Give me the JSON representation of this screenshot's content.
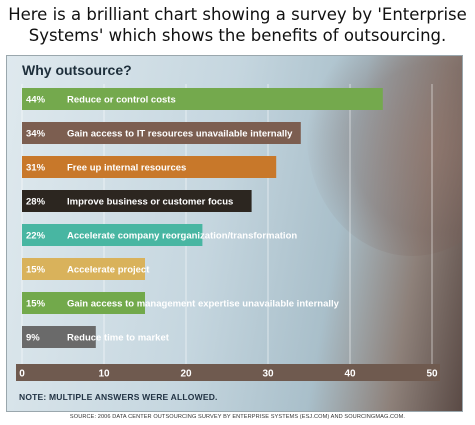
{
  "caption": "Here is a brilliant chart showing a survey by 'Enterprise Systems' which shows the benefits of outsourcing.",
  "note": "NOTE: MULTIPLE ANSWERS WERE ALLOWED.",
  "source": "SOURCE: 2006 DATA CENTER OUTSOURCING SURVEY BY ENTERPRISE SYSTEMS (ESJ.COM) AND SOURCINGMAG.COM.",
  "colors": {
    "axis_bar": "#6f5a4f",
    "bar_colors": [
      "#74a94d",
      "#7c5e50",
      "#c8782a",
      "#2c2620",
      "#48b6a2",
      "#d9b25b",
      "#72a94b",
      "#6a6a6a"
    ]
  },
  "chart_data": {
    "type": "bar",
    "orientation": "horizontal",
    "title": "Why outsource?",
    "xlabel": "",
    "ylabel": "",
    "xlim": [
      0,
      50
    ],
    "xticks": [
      0,
      10,
      20,
      30,
      40,
      50
    ],
    "grid": true,
    "categories": [
      "Reduce or control costs",
      "Gain access to IT resources unavailable internally",
      "Free up internal resources",
      "Improve business or customer focus",
      "Accelerate company reorganization/transformation",
      "Accelerate project",
      "Gain access to management expertise unavailable internally",
      "Reduce time to market"
    ],
    "values": [
      44,
      34,
      31,
      28,
      22,
      15,
      15,
      9
    ],
    "value_labels": [
      "44%",
      "34%",
      "31%",
      "28%",
      "22%",
      "15%",
      "15%",
      "9%"
    ]
  }
}
